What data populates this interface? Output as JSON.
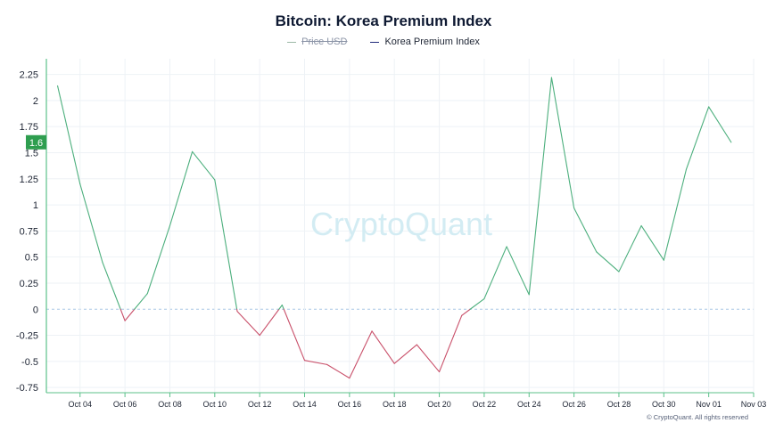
{
  "chart_data": {
    "type": "line",
    "title": "Bitcoin: Korea Premium Index",
    "legend": [
      {
        "name": "Price USD",
        "color": "#9bb8a6",
        "hidden": true
      },
      {
        "name": "Korea Premium Index",
        "color": "#1f2a7a",
        "hidden": false
      }
    ],
    "x_ticks": [
      "Oct 04",
      "Oct 06",
      "Oct 08",
      "Oct 10",
      "Oct 12",
      "Oct 14",
      "Oct 16",
      "Oct 18",
      "Oct 20",
      "Oct 22",
      "Oct 24",
      "Oct 26",
      "Oct 28",
      "Oct 30",
      "Nov 01",
      "Nov 03"
    ],
    "y_ticks": [
      "2.25",
      "2",
      "1.75",
      "1.5",
      "1.25",
      "1",
      "0.75",
      "0.5",
      "0.25",
      "0",
      "-0.25",
      "-0.5",
      "-0.75"
    ],
    "ylim": [
      -0.8,
      2.4
    ],
    "xlim": [
      -0.5,
      31.0
    ],
    "current_value_label": "1.6",
    "watermark": "CryptoQuant",
    "footer": "© CryptoQuant. All rights reserved",
    "colors": {
      "positive": "#4caf7d",
      "negative": "#c9506a",
      "axis": "#5cc18a",
      "grid": "#eef2f6",
      "zero": "#a8c7e6",
      "badge": "#2e9e4f",
      "watermark": "#d3ecf3"
    },
    "series": [
      {
        "name": "Korea Premium Index",
        "x": [
          "Oct 03",
          "Oct 04",
          "Oct 05",
          "Oct 06",
          "Oct 07",
          "Oct 08",
          "Oct 09",
          "Oct 10",
          "Oct 11",
          "Oct 12",
          "Oct 13",
          "Oct 14",
          "Oct 15",
          "Oct 16",
          "Oct 17",
          "Oct 18",
          "Oct 19",
          "Oct 20",
          "Oct 21",
          "Oct 22",
          "Oct 23",
          "Oct 24",
          "Oct 25",
          "Oct 26",
          "Oct 27",
          "Oct 28",
          "Oct 29",
          "Oct 30",
          "Oct 31",
          "Nov 01",
          "Nov 02"
        ],
        "values": [
          2.14,
          1.2,
          0.45,
          -0.11,
          0.15,
          0.8,
          1.51,
          1.24,
          -0.02,
          -0.25,
          0.04,
          -0.49,
          -0.53,
          -0.66,
          -0.21,
          -0.52,
          -0.34,
          -0.6,
          -0.06,
          0.1,
          0.6,
          0.14,
          2.22,
          0.97,
          0.55,
          0.36,
          0.8,
          0.47,
          1.34,
          1.94,
          1.6
        ]
      }
    ]
  }
}
